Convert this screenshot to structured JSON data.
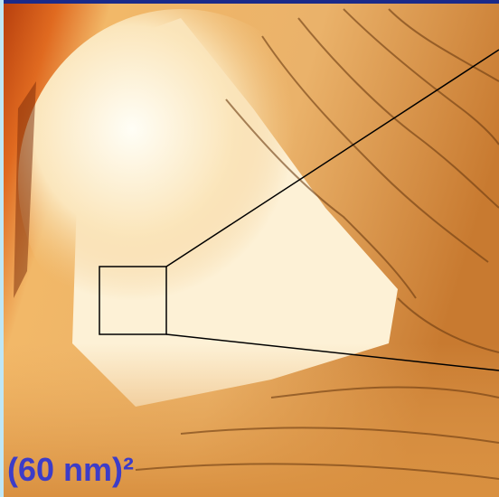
{
  "image": {
    "scale_label": "(60 nm)²"
  }
}
